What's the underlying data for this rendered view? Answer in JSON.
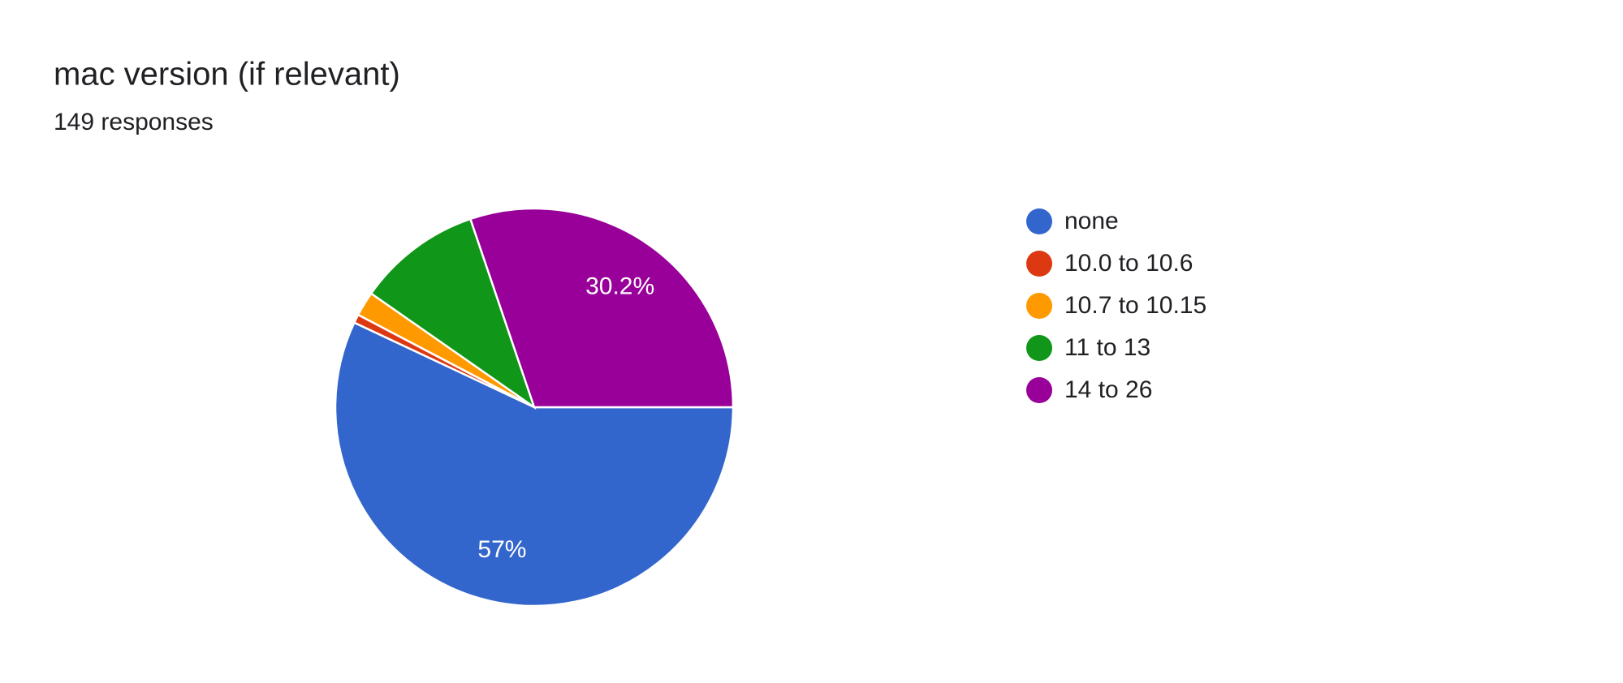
{
  "chart_data": {
    "type": "pie",
    "title": "mac version (if relevant)",
    "subtitle": "149 responses",
    "categories": [
      "none",
      "10.0 to 10.6",
      "10.7 to 10.15",
      "11 to 13",
      "14 to 26"
    ],
    "values": [
      57,
      0.7,
      2,
      10.1,
      30.2
    ],
    "value_labels": [
      "57%",
      null,
      null,
      null,
      "30.2%"
    ],
    "colors": [
      "#3366cc",
      "#dc3912",
      "#ff9900",
      "#109618",
      "#990099"
    ],
    "legend": "right"
  }
}
